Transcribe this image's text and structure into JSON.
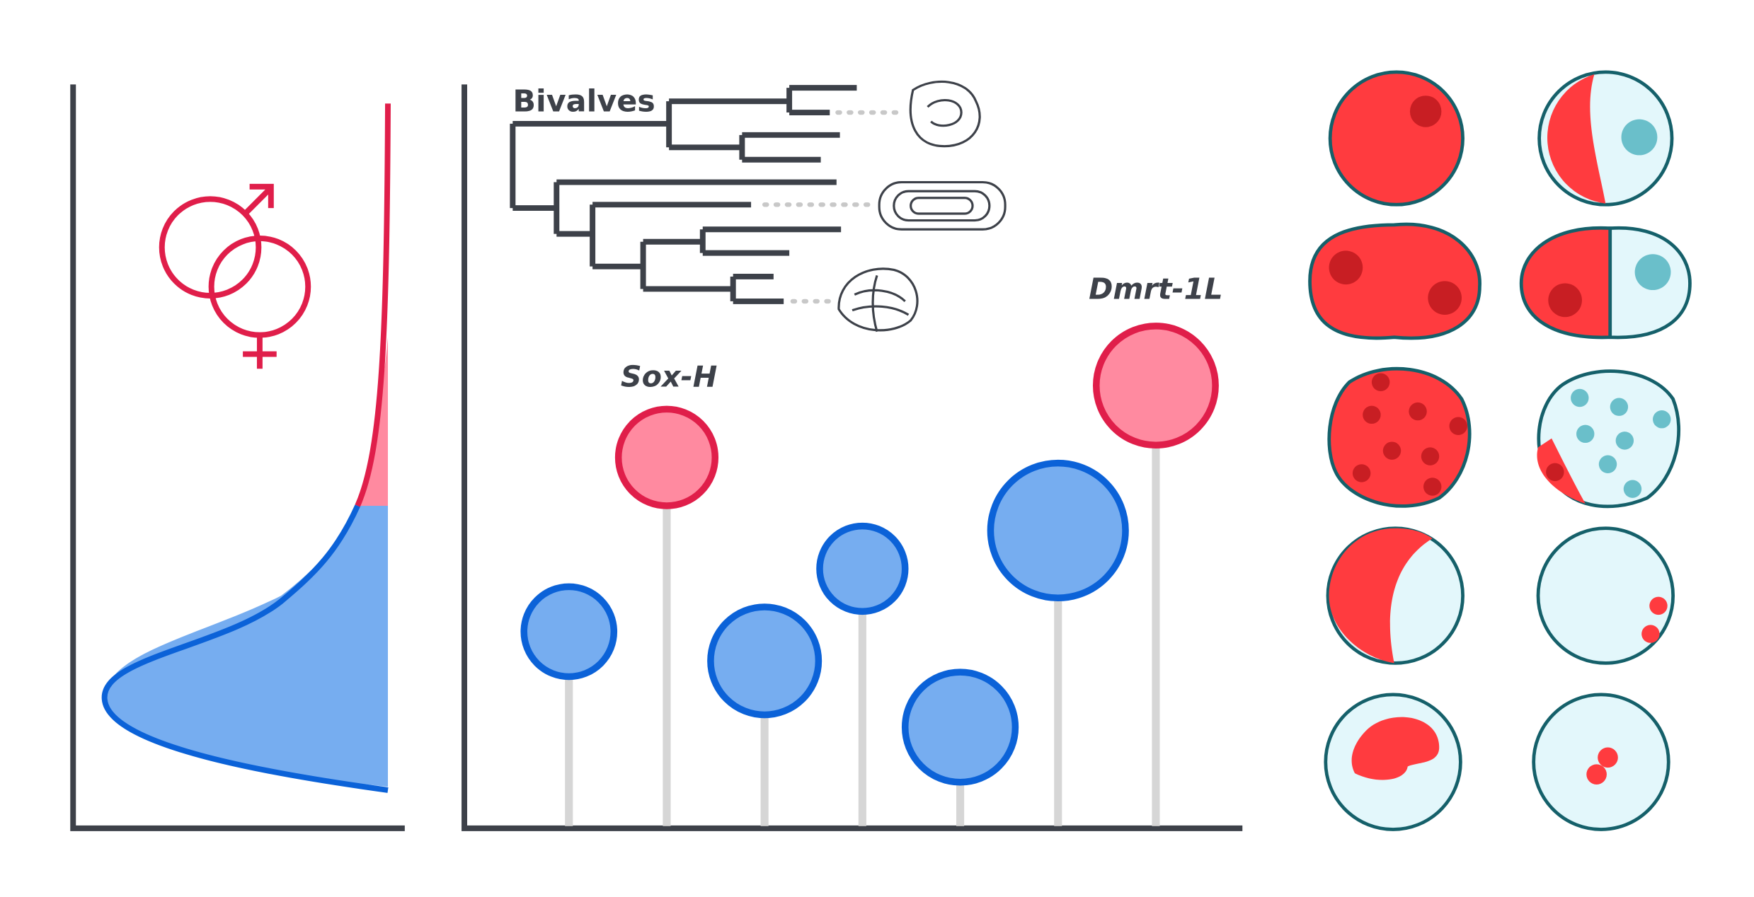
{
  "tree": {
    "label": "Bivalves"
  },
  "genes": {
    "sox": "Sox-H",
    "dmrt": "Dmrt-1L"
  }
}
